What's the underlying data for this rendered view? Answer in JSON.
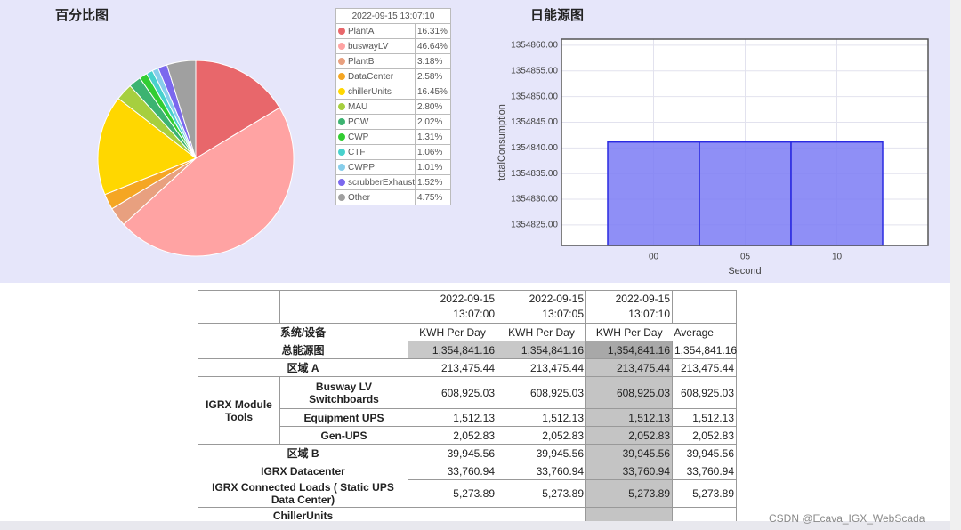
{
  "chart_data": [
    {
      "type": "pie",
      "title": "百分比图",
      "legend_title": "2022-09-15 13:07:10",
      "categories": [
        "PlantA",
        "buswayLV",
        "PlantB",
        "DataCenter",
        "chillerUnits",
        "MAU",
        "PCW",
        "CWP",
        "CTF",
        "CWPP",
        "scrubberExhaust",
        "Other"
      ],
      "values": [
        16.31,
        46.64,
        3.18,
        2.58,
        16.45,
        2.8,
        2.02,
        1.31,
        1.06,
        1.01,
        1.52,
        4.75
      ],
      "value_labels": [
        "16.31%",
        "46.64%",
        "3.18%",
        "2.58%",
        "16.45%",
        "2.80%",
        "2.02%",
        "1.31%",
        "1.06%",
        "1.01%",
        "1.52%",
        "4.75%"
      ],
      "colors": [
        "#e8676b",
        "#ffa3a3",
        "#e8a07f",
        "#f5a623",
        "#ffd700",
        "#a6cf3f",
        "#3cb371",
        "#32cd32",
        "#48d1cc",
        "#87ceeb",
        "#7b68ee",
        "#a0a0a0"
      ]
    },
    {
      "type": "bar",
      "title": "日能源图",
      "x_label": "Second",
      "y_label": "totalConsumption",
      "categories": [
        "00",
        "05",
        "10"
      ],
      "values": [
        1354841.16,
        1354841.16,
        1354841.16
      ],
      "color": "#7b7bf5",
      "edge_color": "#2a2ae0",
      "grid": true,
      "ylim": [
        1354821,
        1354861.2
      ],
      "yticks": [
        {
          "value": 1354825,
          "label": "1354825.00"
        },
        {
          "value": 1354830,
          "label": "1354830.00"
        },
        {
          "value": 1354835,
          "label": "1354835.00"
        },
        {
          "value": 1354840,
          "label": "1354840.00"
        },
        {
          "value": 1354845,
          "label": "1354845.00"
        },
        {
          "value": 1354850,
          "label": "1354850.00"
        },
        {
          "value": 1354855,
          "label": "1354855.00"
        },
        {
          "value": 1354860,
          "label": "1354860.00"
        }
      ]
    }
  ],
  "table": {
    "dates": [
      "2022-09-15 13:07:00",
      "2022-09-15 13:07:05",
      "2022-09-15 13:07:10"
    ],
    "device_header": "系统/设备",
    "unit_headers": [
      "KWH Per Day",
      "KWH Per Day",
      "KWH Per Day",
      "Average"
    ],
    "rows": [
      {
        "label": "总能源图",
        "values": [
          "1,354,841.16",
          "1,354,841.16",
          "1,354,841.16",
          "1,354,841.16"
        ]
      },
      {
        "label": "区域 A",
        "values": [
          "213,475.44",
          "213,475.44",
          "213,475.44",
          "213,475.44"
        ]
      },
      {
        "group": "IGRX Module Tools",
        "items": [
          {
            "label": "Busway LV Switchboards",
            "values": [
              "608,925.03",
              "608,925.03",
              "608,925.03",
              "608,925.03"
            ]
          },
          {
            "label": "Equipment UPS",
            "values": [
              "1,512.13",
              "1,512.13",
              "1,512.13",
              "1,512.13"
            ]
          },
          {
            "label": "Gen-UPS",
            "values": [
              "2,052.83",
              "2,052.83",
              "2,052.83",
              "2,052.83"
            ]
          }
        ]
      },
      {
        "label": "区域 B",
        "values": [
          "39,945.56",
          "39,945.56",
          "39,945.56",
          "39,945.56"
        ]
      },
      {
        "label": "IGRX Datacenter",
        "values": [
          "33,760.94",
          "33,760.94",
          "33,760.94",
          "33,760.94"
        ]
      },
      {
        "label": "IGRX Connected Loads ( Static UPS Data Center)",
        "values": [
          "5,273.89",
          "5,273.89",
          "5,273.89",
          "5,273.89"
        ]
      },
      {
        "label": "ChillerUnits",
        "values": []
      }
    ]
  },
  "watermark": "CSDN @Ecava_IGX_WebScada"
}
